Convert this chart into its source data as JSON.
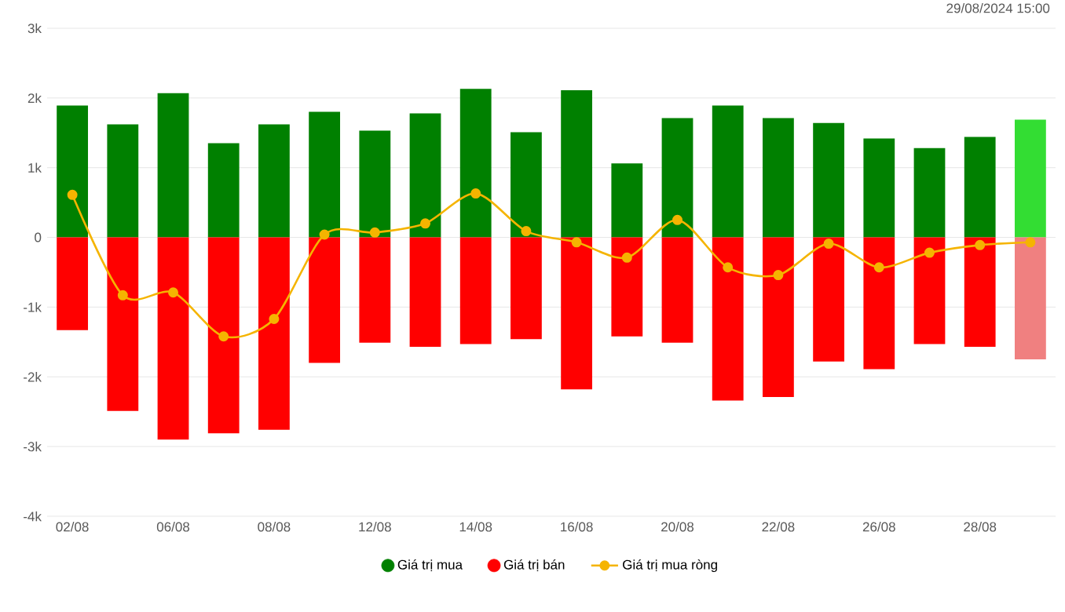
{
  "chart_data": {
    "type": "bar",
    "categories": [
      "02/08",
      null,
      "06/08",
      null,
      "08/08",
      null,
      "12/08",
      null,
      "14/08",
      null,
      "16/08",
      null,
      "20/08",
      null,
      "22/08",
      null,
      "26/08",
      null,
      "28/08",
      null
    ],
    "series": [
      {
        "name": "Giá trị mua",
        "color": "#008000",
        "colors": [
          "#008000",
          "#008000",
          "#008000",
          "#008000",
          "#008000",
          "#008000",
          "#008000",
          "#008000",
          "#008000",
          "#008000",
          "#008000",
          "#008000",
          "#008000",
          "#008000",
          "#008000",
          "#008000",
          "#008000",
          "#008000",
          "#008000",
          "#33dd33"
        ],
        "values": [
          1890,
          1620,
          2070,
          1350,
          1620,
          1800,
          1530,
          1780,
          2130,
          1510,
          2110,
          1060,
          1710,
          1890,
          1710,
          1640,
          1420,
          1280,
          1440,
          1690
        ]
      },
      {
        "name": "Giá trị bán",
        "color": "#ff0000",
        "colors": [
          "#ff0000",
          "#ff0000",
          "#ff0000",
          "#ff0000",
          "#ff0000",
          "#ff0000",
          "#ff0000",
          "#ff0000",
          "#ff0000",
          "#ff0000",
          "#ff0000",
          "#ff0000",
          "#ff0000",
          "#ff0000",
          "#ff0000",
          "#ff0000",
          "#ff0000",
          "#ff0000",
          "#ff0000",
          "#f08080"
        ],
        "values": [
          -1330,
          -2490,
          -2900,
          -2810,
          -2760,
          -1800,
          -1510,
          -1570,
          -1530,
          -1460,
          -2180,
          -1420,
          -1510,
          -2340,
          -2290,
          -1780,
          -1890,
          -1530,
          -1570,
          -1750
        ]
      },
      {
        "name": "Giá trị mua ròng",
        "type": "line",
        "color": "#f5b400",
        "values": [
          610,
          -830,
          -790,
          -1420,
          -1170,
          40,
          70,
          200,
          630,
          90,
          -70,
          -290,
          250,
          -430,
          -540,
          -90,
          -430,
          -220,
          -110,
          -70
        ]
      }
    ],
    "ylim": [
      -4000,
      3000
    ],
    "yticks": [
      {
        "value": -4000,
        "label": "-4k"
      },
      {
        "value": -3000,
        "label": "-3k"
      },
      {
        "value": -2000,
        "label": "-2k"
      },
      {
        "value": -1000,
        "label": "-1k"
      },
      0,
      {
        "value": 1000,
        "label": "1k"
      },
      {
        "value": 2000,
        "label": "2k"
      },
      {
        "value": 3000,
        "label": "3k"
      }
    ],
    "stacked": true,
    "grid": "y",
    "legend": "bottom",
    "marker": "circle",
    "annotations": [
      "29/08/2024 15:00"
    ]
  }
}
